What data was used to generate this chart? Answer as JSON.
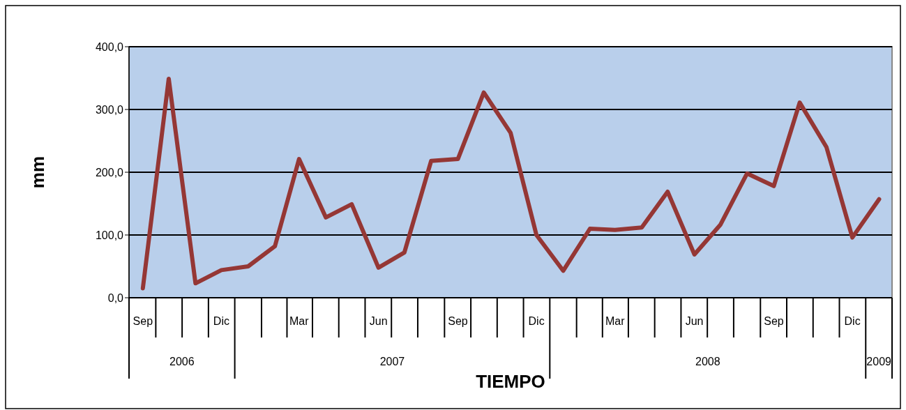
{
  "chart_data": {
    "type": "line",
    "xlabel": "TIEMPO",
    "ylabel": "mm",
    "x": [
      "2006-09",
      "2006-10",
      "2006-11",
      "2006-12",
      "2007-01",
      "2007-02",
      "2007-03",
      "2007-04",
      "2007-05",
      "2007-06",
      "2007-07",
      "2007-08",
      "2007-09",
      "2007-10",
      "2007-11",
      "2007-12",
      "2008-01",
      "2008-02",
      "2008-03",
      "2008-04",
      "2008-05",
      "2008-06",
      "2008-07",
      "2008-08",
      "2008-09",
      "2008-10",
      "2008-11",
      "2008-12",
      "2009-01"
    ],
    "series": [
      {
        "color": "#953735",
        "values": [
          15,
          349,
          23,
          44,
          50,
          82,
          221,
          128,
          149,
          48,
          72,
          218,
          221,
          327,
          263,
          100,
          43,
          110,
          108,
          112,
          169,
          69,
          116,
          198,
          178,
          311,
          240,
          96,
          157
        ]
      }
    ],
    "xlim": [
      "2006-08-16",
      "2009-01-16"
    ],
    "xticks": [
      {
        "value": "2006-09",
        "label": "Sep"
      },
      {
        "value": "2006-12",
        "label": "Dic"
      },
      {
        "value": "2007-03",
        "label": "Mar"
      },
      {
        "value": "2007-06",
        "label": "Jun"
      },
      {
        "value": "2007-09",
        "label": "Sep"
      },
      {
        "value": "2007-12",
        "label": "Dic"
      },
      {
        "value": "2008-03",
        "label": "Mar"
      },
      {
        "value": "2008-06",
        "label": "Jun"
      },
      {
        "value": "2008-09",
        "label": "Sep"
      },
      {
        "value": "2008-12",
        "label": "Dic"
      }
    ],
    "annotations": [
      "2006",
      "2007",
      "2008",
      "2009"
    ],
    "ylim": [
      0,
      400
    ],
    "yticks": [
      {
        "value": 0,
        "label": "0,0"
      },
      {
        "value": 100,
        "label": "100,0"
      },
      {
        "value": 200,
        "label": "200,0"
      },
      {
        "value": 300,
        "label": "300,0"
      },
      {
        "value": 400,
        "label": "400,0"
      }
    ],
    "grid": "y",
    "marker": "none",
    "line_style": "solid"
  }
}
